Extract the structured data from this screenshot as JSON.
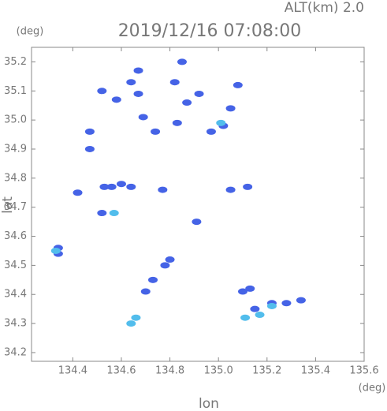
{
  "chart_data": {
    "type": "scatter",
    "title": "2019/12/16 07:08:00",
    "subtitle": "ALT(km) 2.0",
    "y_unit": "(deg)",
    "x_unit": "(deg)",
    "xlabel": "lon",
    "ylabel": "lat",
    "xlim": [
      134.23,
      135.6
    ],
    "ylim": [
      34.17,
      35.25
    ],
    "xticks": [
      134.4,
      134.6,
      134.8,
      {
        "value": 135,
        "label": "135.0"
      },
      135.2,
      135.4,
      135.6
    ],
    "yticks": [
      34.2,
      34.3,
      34.4,
      34.5,
      34.6,
      34.7,
      34.8,
      34.9,
      {
        "value": 35,
        "label": "35.0"
      },
      35.1,
      35.2
    ],
    "series": [
      {
        "color": "#4563e6",
        "x": [
          134.34,
          134.34,
          134.42,
          134.47,
          134.47,
          134.52,
          134.53,
          134.56,
          134.6,
          134.64,
          134.52,
          134.58,
          134.64,
          134.67,
          134.67,
          134.69,
          134.74,
          134.85,
          134.82,
          134.87,
          134.83,
          134.92,
          134.97,
          135.02,
          135.05,
          135.08,
          134.8,
          134.78,
          134.73,
          134.7,
          134.77,
          135.05,
          135.12,
          134.91,
          135.1,
          135.15,
          135.22,
          135.28,
          135.34,
          135.13
        ],
        "y": [
          34.54,
          34.56,
          34.75,
          34.9,
          34.96,
          35.1,
          34.77,
          34.77,
          34.78,
          34.77,
          34.68,
          35.07,
          35.13,
          35.17,
          35.09,
          35.01,
          34.96,
          35.2,
          35.13,
          35.06,
          34.99,
          35.09,
          34.96,
          34.98,
          35.04,
          35.12,
          34.52,
          34.5,
          34.45,
          34.41,
          34.76,
          34.76,
          34.77,
          34.65,
          34.41,
          34.35,
          34.37,
          34.37,
          34.38,
          34.42
        ]
      },
      {
        "color": "#52bdec",
        "x": [
          134.33,
          134.64,
          134.66,
          135.17,
          135.22,
          135.11,
          135.01,
          134.57
        ],
        "y": [
          34.55,
          34.3,
          34.32,
          34.33,
          34.36,
          34.32,
          34.99,
          34.68
        ]
      }
    ]
  }
}
